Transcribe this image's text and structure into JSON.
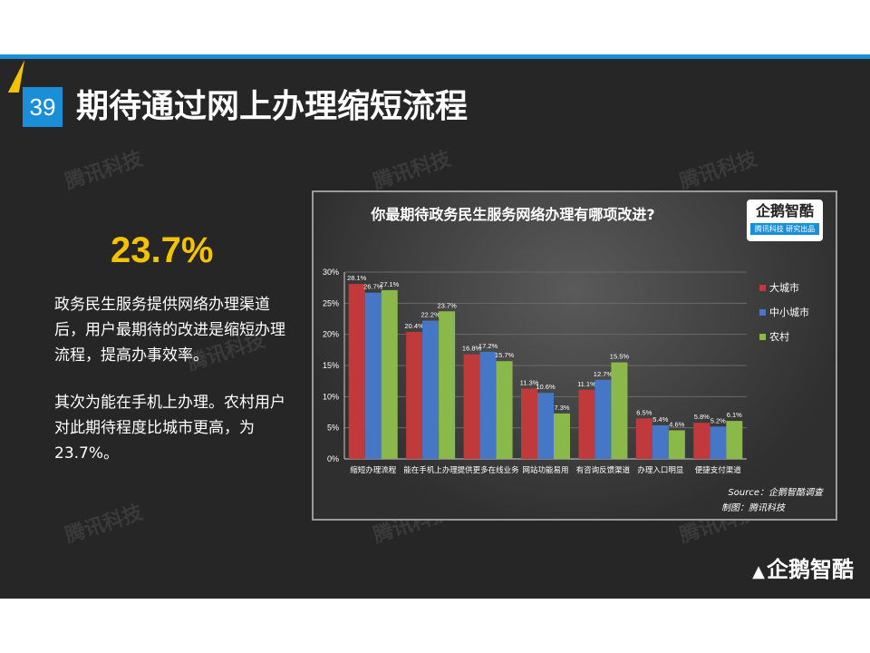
{
  "slide": {
    "number": "39",
    "title": "期待通过网上办理缩短流程"
  },
  "highlight": {
    "value": "23.7%",
    "paragraph1": "政务民生服务提供网络办理渠道后，用户最期待的改进是缩短办理流程，提高办事效率。",
    "paragraph2": "其次为能在手机上办理。农村用户对此期待程度比城市更高，为23.7%。"
  },
  "watermarks": [
    "腾讯科技",
    "腾讯科技",
    "腾讯科技",
    "腾讯科技",
    "腾讯科技",
    "腾讯科技",
    "腾讯科技",
    "腾讯科技",
    "腾讯科技"
  ],
  "brand_logo": {
    "name": "企鹅智酷",
    "tagline": "腾讯科技 研究出品"
  },
  "footer_logo": "企鹅智酷",
  "colors": {
    "big_city": "#c0393b",
    "small_city": "#4577c6",
    "rural": "#8bb84a",
    "accent_blue": "#1a8fd8",
    "accent_yellow": "#f5c200"
  },
  "chart_data": {
    "type": "bar",
    "title": "你最期待政务民生服务网络办理有哪项改进?",
    "categories": [
      "缩短办理流程",
      "能在手机上办理",
      "提供更多在线业务",
      "网站功能易用",
      "有咨询反馈渠道",
      "办理入口明显",
      "便捷支付渠道"
    ],
    "series": [
      {
        "name": "大城市",
        "values": [
          28.1,
          20.4,
          16.8,
          11.3,
          11.1,
          6.5,
          5.8
        ],
        "labels": [
          "28.1%",
          "20.4%",
          "16.8%",
          "11.3%",
          "11.1%",
          "6.5%",
          "5.8%"
        ]
      },
      {
        "name": "中小城市",
        "values": [
          26.7,
          22.2,
          17.2,
          10.6,
          12.7,
          5.4,
          5.2
        ],
        "labels": [
          "26.7%",
          "22.2%",
          "17.2%",
          "10.6%",
          "12.7%",
          "5.4%",
          "5.2%"
        ]
      },
      {
        "name": "农村",
        "values": [
          27.1,
          23.7,
          15.7,
          7.3,
          15.5,
          4.6,
          6.1
        ],
        "labels": [
          "27.1%",
          "23.7%",
          "15.7%",
          "7.3%",
          "15.5%",
          "4.6%",
          "6.1%"
        ]
      }
    ],
    "ylim": [
      0,
      30
    ],
    "yticks": [
      "0%",
      "5%",
      "10%",
      "15%",
      "20%",
      "25%",
      "30%"
    ],
    "legend_position": "right",
    "source": "Source：企鹅智酷调查",
    "credit": "制图：腾讯科技"
  }
}
